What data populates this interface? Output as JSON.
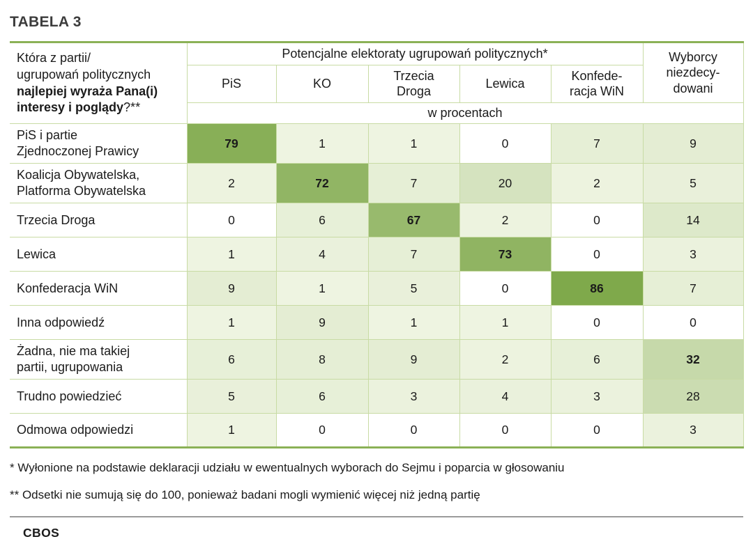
{
  "page": {
    "title": "TABELA 3",
    "brand": "CBOS"
  },
  "chart_data": {
    "type": "table",
    "title": "TABELA 3",
    "question": {
      "regular": "Która z partii/\nugrupowań politycznych\n",
      "bold": "najlepiej wyraża Pana(i)\ninteresy i poglądy",
      "suffix": "?**"
    },
    "group_header": "Potencjalne elektoraty ugrupowań politycznych*",
    "undecided_header": "Wyborcy\nniezdecy-\ndowani",
    "party_columns": [
      "PiS",
      "KO",
      "Trzecia\nDroga",
      "Lewica",
      "Konfede-\nracja WiN"
    ],
    "all_columns": [
      "PiS",
      "KO",
      "Trzecia Droga",
      "Lewica",
      "Konfederacja WiN",
      "Wyborcy niezdecydowani"
    ],
    "unit_label": "w procentach",
    "rows": [
      {
        "label": "PiS i partie\nZjednoczonej Prawicy",
        "values": [
          79,
          1,
          1,
          0,
          7,
          9
        ],
        "highlight_col": 0
      },
      {
        "label": "Koalicja Obywatelska,\nPlatforma Obywatelska",
        "values": [
          2,
          72,
          7,
          20,
          2,
          5
        ],
        "highlight_col": 1
      },
      {
        "label": "Trzecia Droga",
        "values": [
          0,
          6,
          67,
          2,
          0,
          14
        ],
        "highlight_col": 2
      },
      {
        "label": "Lewica",
        "values": [
          1,
          4,
          7,
          73,
          0,
          3
        ],
        "highlight_col": 3
      },
      {
        "label": "Konfederacja WiN",
        "values": [
          9,
          1,
          5,
          0,
          86,
          7
        ],
        "highlight_col": 4
      },
      {
        "label": "Inna odpowiedź",
        "values": [
          1,
          9,
          1,
          1,
          0,
          0
        ],
        "highlight_col": -1
      },
      {
        "label": "Żadna, nie ma takiej\npartii, ugrupowania",
        "values": [
          6,
          8,
          9,
          2,
          6,
          32
        ],
        "highlight_col": 5
      },
      {
        "label": "Trudno powiedzieć",
        "values": [
          5,
          6,
          3,
          4,
          3,
          28
        ],
        "highlight_col": -1
      },
      {
        "label": "Odmowa odpowiedzi",
        "values": [
          1,
          0,
          0,
          0,
          0,
          3
        ],
        "highlight_col": -1
      }
    ],
    "footnotes": [
      "* Wyłonione na podstawie deklaracji udziału w ewentualnych wyborach do Sejmu i poparcia w głosowaniu",
      "** Odsetki nie sumują się do 100, ponieważ badani mogli wymienić więcej niż jedną partię"
    ]
  },
  "colors": {
    "heat_zero": "#ffffff",
    "heat_min": "#eef4e1",
    "heat_max": "#7fa94b",
    "heat_max_value": 86,
    "border_outer": "#8bb156",
    "border_inner": "#c8dba4",
    "separator": "#9a9a9a",
    "title": "#3c3c3c",
    "text": "#1b1b1b"
  }
}
